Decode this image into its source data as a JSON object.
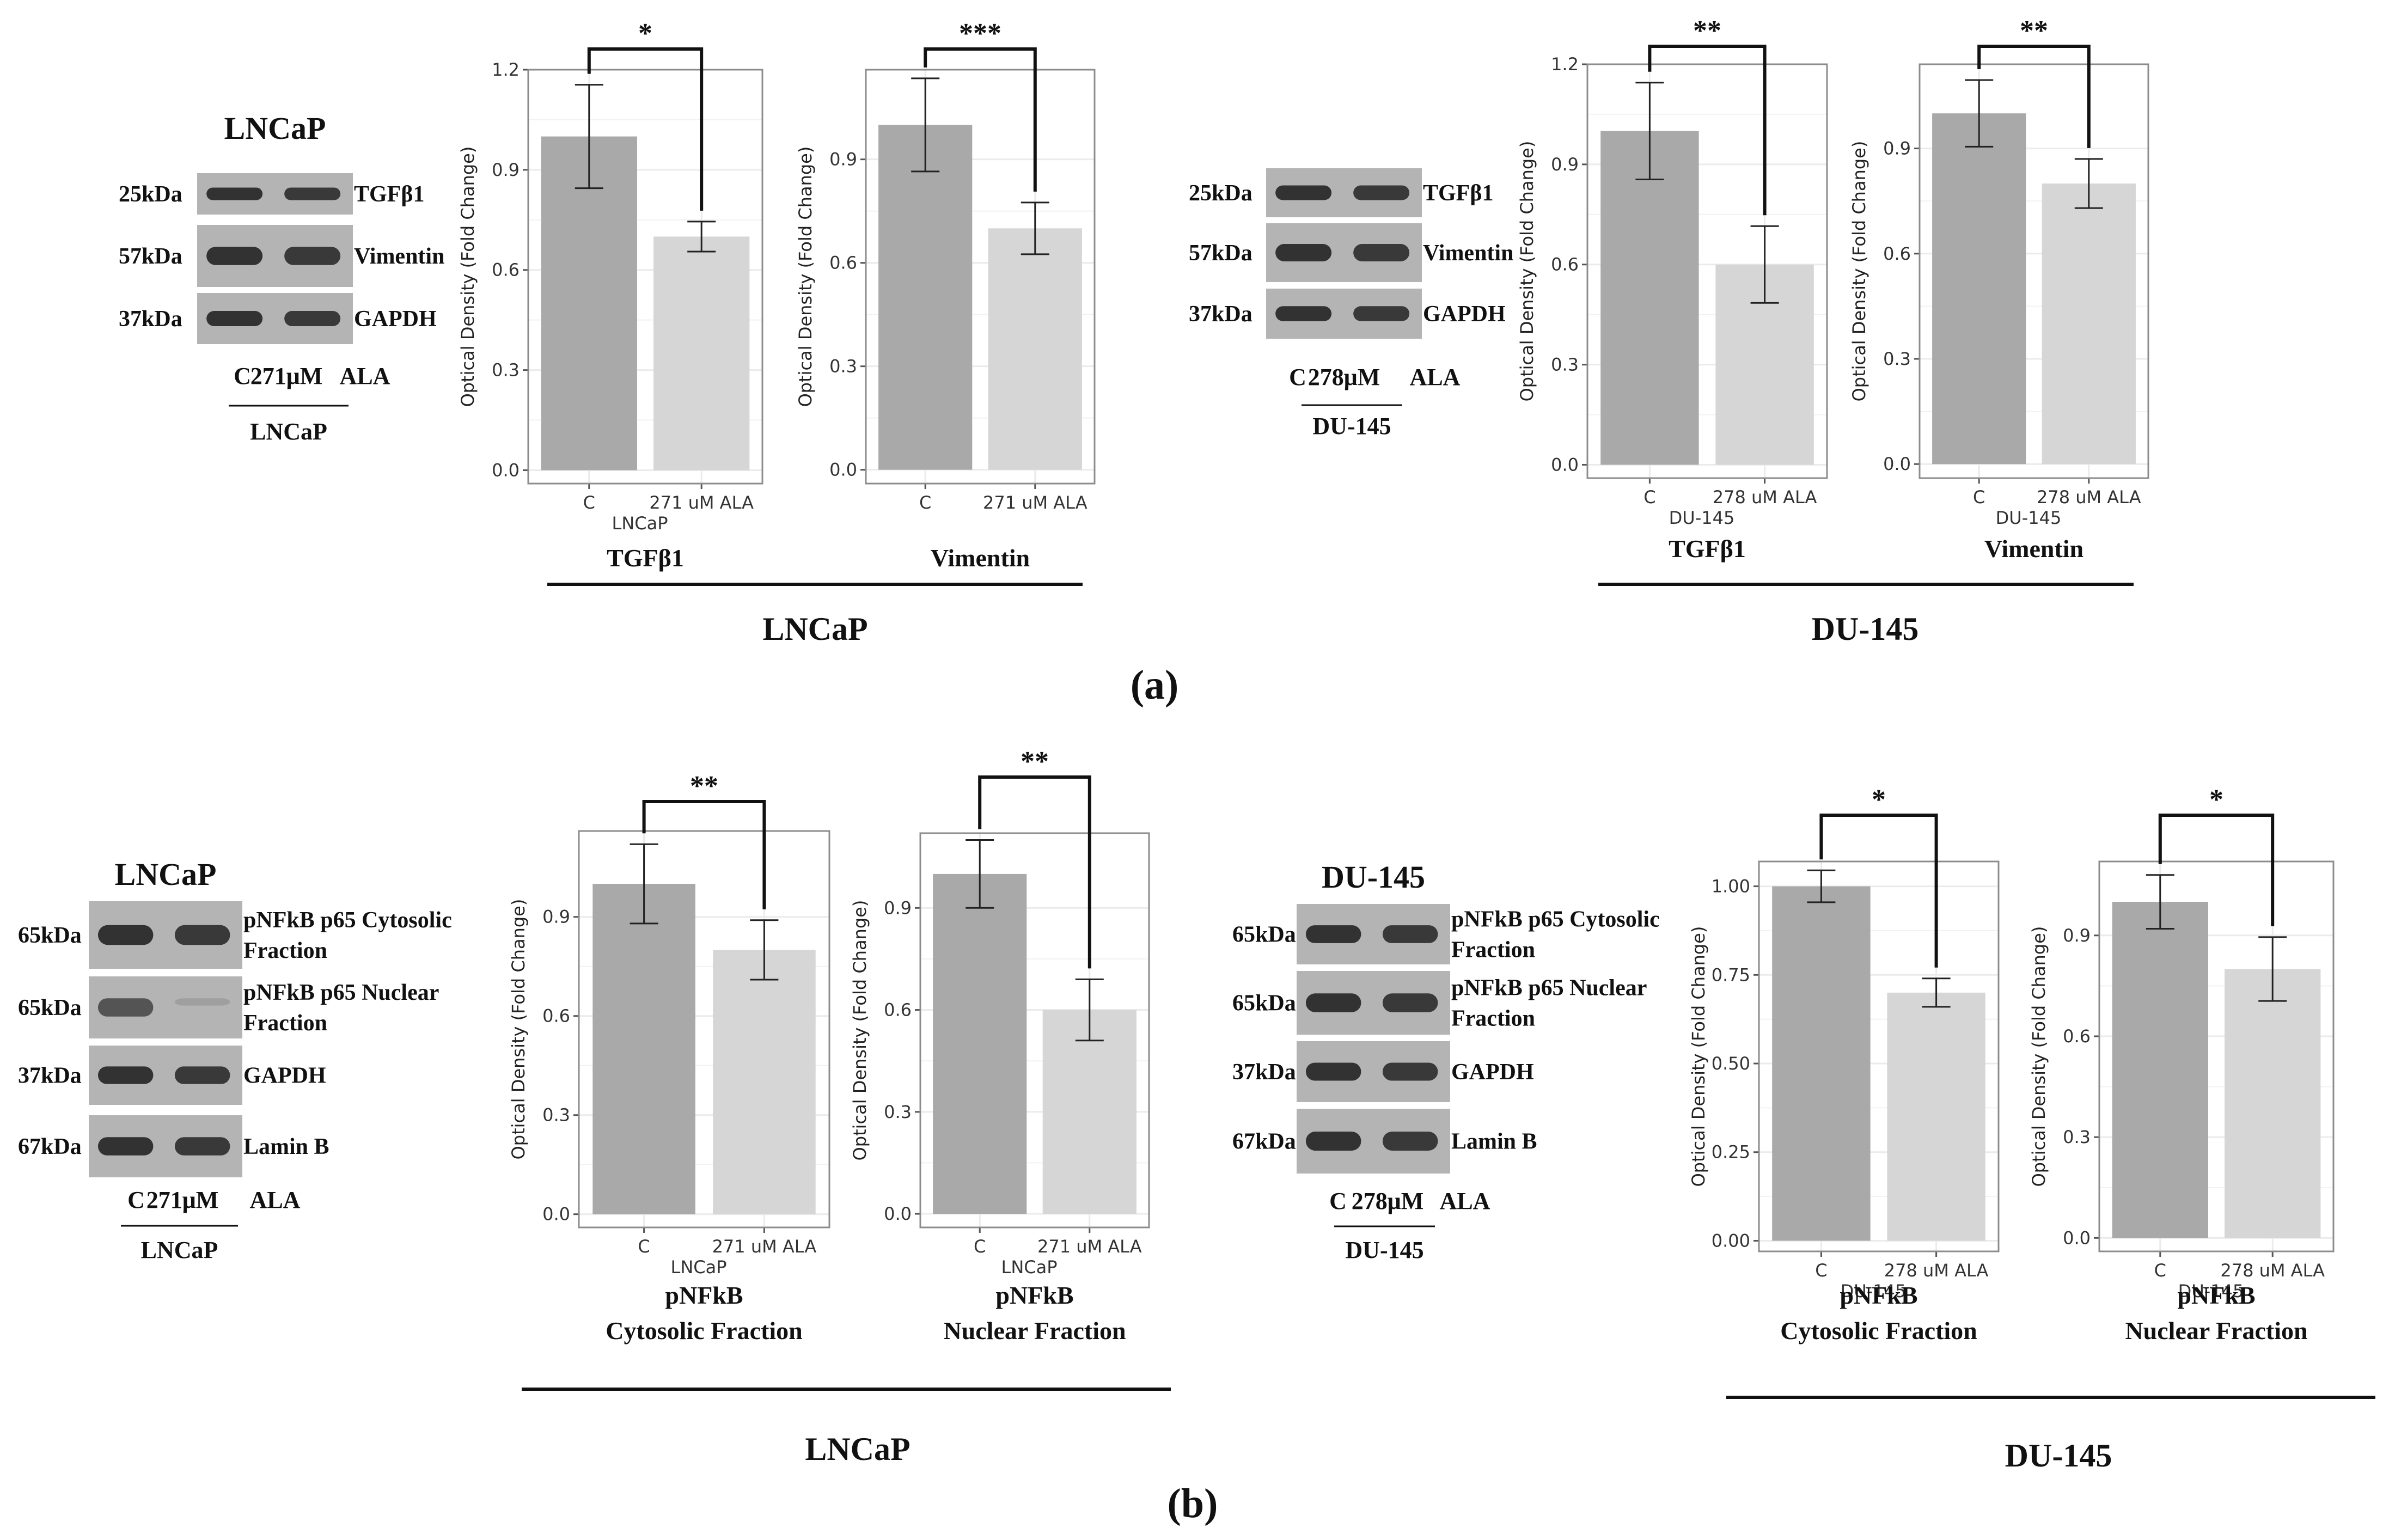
{
  "panel_labels": {
    "a": "(a)",
    "b": "(b)"
  },
  "colors": {
    "bar_control": "#a9a9a9",
    "bar_treated": "#d6d6d6",
    "blot_bg": "#b4b4b4",
    "band": "#2b2b2b",
    "grid": "#ebebeb",
    "frame": "#8c8c8c"
  },
  "blots": [
    {
      "title": "LNCaP",
      "rows": [
        {
          "mw": "25kDa",
          "label": "TGFβ1"
        },
        {
          "mw": "57kDa",
          "label": "Vimentin"
        },
        {
          "mw": "37kDa",
          "label": "GAPDH"
        }
      ],
      "lanes": [
        "C",
        "271μM",
        "ALA"
      ],
      "cell": "LNCaP"
    },
    {
      "title": "DU-145",
      "rows": [
        {
          "mw": "25kDa",
          "label": "TGFβ1"
        },
        {
          "mw": "57kDa",
          "label": "Vimentin"
        },
        {
          "mw": "37kDa",
          "label": "GAPDH"
        }
      ],
      "lanes": [
        "C",
        "278μM",
        "ALA"
      ],
      "cell": "DU-145"
    },
    {
      "title": "LNCaP",
      "rows": [
        {
          "mw": "65kDa",
          "label": "pNFkB p65 Cytosolic",
          "label2": "Fraction"
        },
        {
          "mw": "65kDa",
          "label": "pNFkB p65 Nuclear",
          "label2": "Fraction"
        },
        {
          "mw": "37kDa",
          "label": "GAPDH"
        },
        {
          "mw": "67kDa",
          "label": "Lamin B"
        }
      ],
      "lanes": [
        "C",
        "271μM",
        "ALA"
      ],
      "cell": "LNCaP"
    },
    {
      "title": "DU-145",
      "rows": [
        {
          "mw": "65kDa",
          "label": "pNFkB p65 Cytosolic",
          "label2": "Fraction"
        },
        {
          "mw": "65kDa",
          "label": "pNFkB p65 Nuclear",
          "label2": "Fraction"
        },
        {
          "mw": "37kDa",
          "label": "GAPDH"
        },
        {
          "mw": "67kDa",
          "label": "Lamin B"
        }
      ],
      "lanes": [
        "C",
        "278μM",
        "ALA"
      ],
      "cell": "DU-145"
    }
  ],
  "group_labels": [
    {
      "text": "LNCaP"
    },
    {
      "text": "DU-145"
    },
    {
      "text": "LNCaP"
    },
    {
      "text": "DU-145"
    }
  ],
  "chart_data": [
    {
      "type": "bar",
      "categories": [
        "C",
        "271 uM ALA"
      ],
      "xsub": "LNCaP",
      "values": [
        1.0,
        0.7
      ],
      "errors": [
        0.155,
        0.045
      ],
      "ylabel": "Optical Density (Fold Change)",
      "yticks": [
        "0.0",
        "0.3",
        "0.6",
        "0.9",
        "1.2"
      ],
      "tickvals": [
        0,
        0.3,
        0.6,
        0.9,
        1.2
      ],
      "ylim": [
        -0.04,
        1.2
      ],
      "significance": "*",
      "caption": [
        "TGFβ1"
      ]
    },
    {
      "type": "bar",
      "categories": [
        "C",
        "271 uM ALA"
      ],
      "xsub": "",
      "values": [
        1.0,
        0.7
      ],
      "errors": [
        0.135,
        0.075
      ],
      "ylabel": "Optical Density (Fold Change)",
      "yticks": [
        "0.0",
        "0.3",
        "0.6",
        "0.9"
      ],
      "tickvals": [
        0,
        0.3,
        0.6,
        0.9
      ],
      "ylim": [
        -0.04,
        1.16
      ],
      "significance": "***",
      "caption": [
        "Vimentin"
      ]
    },
    {
      "type": "bar",
      "categories": [
        "C",
        "278 uM ALA"
      ],
      "xsub": "DU-145",
      "values": [
        1.0,
        0.6
      ],
      "errors": [
        0.145,
        0.115
      ],
      "ylabel": "Optical Density (Fold Change)",
      "yticks": [
        "0.0",
        "0.3",
        "0.6",
        "0.9",
        "1.2"
      ],
      "tickvals": [
        0,
        0.3,
        0.6,
        0.9,
        1.2
      ],
      "ylim": [
        -0.04,
        1.2
      ],
      "significance": "**",
      "caption": [
        "TGFβ1"
      ]
    },
    {
      "type": "bar",
      "categories": [
        "C",
        "278 uM ALA"
      ],
      "xsub": "DU-145",
      "values": [
        1.0,
        0.8
      ],
      "errors": [
        0.095,
        0.07
      ],
      "ylabel": "Optical Density (Fold Change)",
      "yticks": [
        "0.0",
        "0.3",
        "0.6",
        "0.9"
      ],
      "tickvals": [
        0,
        0.3,
        0.6,
        0.9
      ],
      "ylim": [
        -0.04,
        1.14
      ],
      "significance": "**",
      "caption": [
        "Vimentin"
      ]
    },
    {
      "type": "bar",
      "categories": [
        "C",
        "271 uM ALA"
      ],
      "xsub": "LNCaP",
      "values": [
        1.0,
        0.8
      ],
      "errors": [
        0.12,
        0.09
      ],
      "ylabel": "Optical Density (Fold Change)",
      "yticks": [
        "0.0",
        "0.3",
        "0.6",
        "0.9"
      ],
      "tickvals": [
        0,
        0.3,
        0.6,
        0.9
      ],
      "ylim": [
        -0.04,
        1.16
      ],
      "significance": "**",
      "caption": [
        "pNFkB",
        "Cytosolic Fraction"
      ]
    },
    {
      "type": "bar",
      "categories": [
        "C",
        "271 uM ALA"
      ],
      "xsub": "LNCaP",
      "values": [
        1.0,
        0.6
      ],
      "errors": [
        0.1,
        0.09
      ],
      "ylabel": "Optical Density (Fold Change)",
      "yticks": [
        "0.0",
        "0.3",
        "0.6",
        "0.9"
      ],
      "tickvals": [
        0,
        0.3,
        0.6,
        0.9
      ],
      "ylim": [
        -0.04,
        1.12
      ],
      "significance": "**",
      "caption": [
        "pNFkB",
        "Nuclear Fraction"
      ]
    },
    {
      "type": "bar",
      "categories": [
        "C",
        "278 uM ALA"
      ],
      "xsub": "DU-145",
      "values": [
        1.0,
        0.7
      ],
      "errors": [
        0.045,
        0.04
      ],
      "ylabel": "Optical Density (Fold Change)",
      "yticks": [
        "0.00",
        "0.25",
        "0.50",
        "0.75",
        "1.00"
      ],
      "tickvals": [
        0,
        0.25,
        0.5,
        0.75,
        1.0
      ],
      "ylim": [
        -0.03,
        1.07
      ],
      "significance": "*",
      "caption": [
        "pNFkB",
        "Cytosolic Fraction"
      ]
    },
    {
      "type": "bar",
      "categories": [
        "C",
        "278 uM ALA"
      ],
      "xsub": "DU-145",
      "values": [
        1.0,
        0.8
      ],
      "errors": [
        0.08,
        0.095
      ],
      "ylabel": "Optical Density (Fold Change)",
      "yticks": [
        "0.0",
        "0.3",
        "0.6",
        "0.9"
      ],
      "tickvals": [
        0,
        0.3,
        0.6,
        0.9
      ],
      "ylim": [
        -0.04,
        1.12
      ],
      "significance": "*",
      "caption": [
        "pNFkB",
        "Nuclear Fraction"
      ]
    }
  ]
}
